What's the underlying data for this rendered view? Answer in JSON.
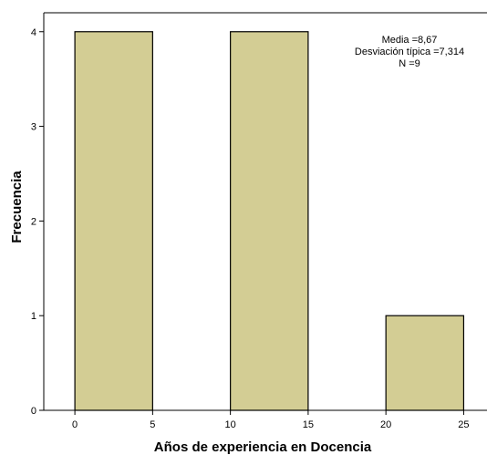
{
  "chart_data": {
    "type": "bar",
    "subtype": "histogram",
    "bins": [
      {
        "x0": 0,
        "x1": 5,
        "count": 4
      },
      {
        "x0": 5,
        "x1": 10,
        "count": 0
      },
      {
        "x0": 10,
        "x1": 15,
        "count": 4
      },
      {
        "x0": 15,
        "x1": 20,
        "count": 0
      },
      {
        "x0": 20,
        "x1": 25,
        "count": 1
      }
    ],
    "xlabel": "Años de experiencia en Docencia",
    "ylabel": "Frecuencia",
    "xlim": [
      -2,
      26.5
    ],
    "ylim": [
      0,
      4.2
    ],
    "xticks": [
      0,
      5,
      10,
      15,
      20,
      25
    ],
    "yticks": [
      0,
      1,
      2,
      3,
      4
    ],
    "grid": false,
    "colors": {
      "bar_fill": "#d3cd94",
      "bar_stroke": "#000000",
      "background": "#ffffff"
    },
    "stats": {
      "line1": "Media =8,67",
      "line2": "Desviación típica =7,314",
      "line3": "N =9"
    }
  }
}
